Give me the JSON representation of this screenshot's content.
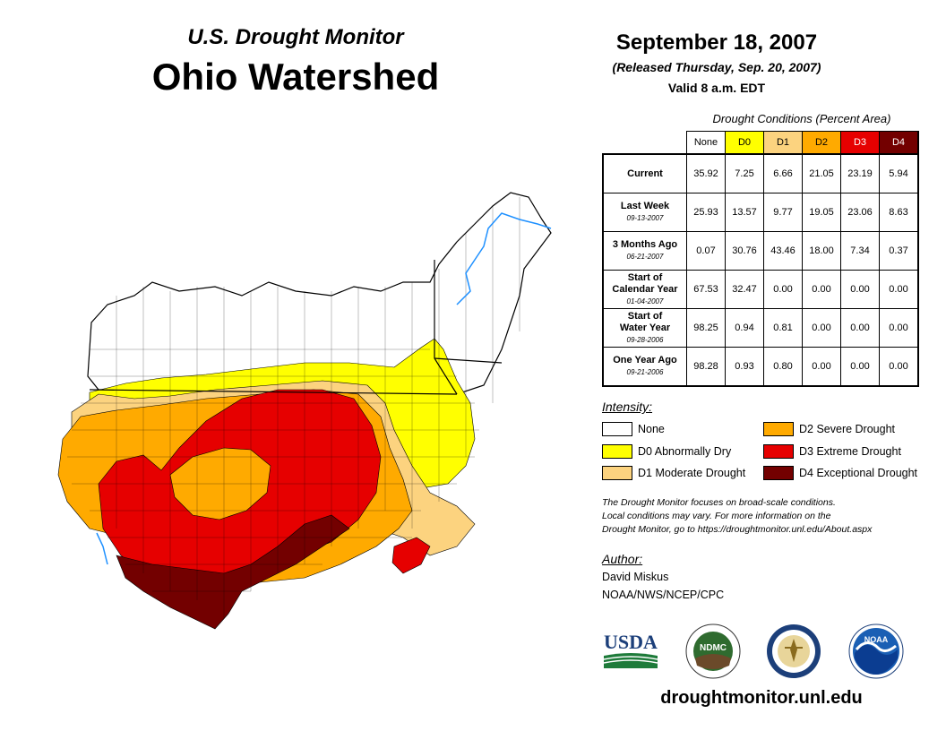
{
  "header": {
    "subtitle": "U.S. Drought Monitor",
    "region": "Ohio Watershed",
    "date": "September 18, 2007",
    "released": "(Released Thursday, Sep. 20, 2007)",
    "valid": "Valid 8 a.m. EDT"
  },
  "table": {
    "title": "Drought Conditions (Percent Area)",
    "columns": [
      {
        "label": "None",
        "color": "#ffffff"
      },
      {
        "label": "D0",
        "color": "#ffff00"
      },
      {
        "label": "D1",
        "color": "#fcd37f"
      },
      {
        "label": "D2",
        "color": "#ffaa00"
      },
      {
        "label": "D3",
        "color": "#e60000"
      },
      {
        "label": "D4",
        "color": "#730000"
      }
    ],
    "rows": [
      {
        "label": "Current",
        "label2": "",
        "date": "",
        "values": [
          "35.92",
          "7.25",
          "6.66",
          "21.05",
          "23.19",
          "5.94"
        ]
      },
      {
        "label": "Last Week",
        "label2": "",
        "date": "09-13-2007",
        "values": [
          "25.93",
          "13.57",
          "9.77",
          "19.05",
          "23.06",
          "8.63"
        ]
      },
      {
        "label": "3 Months Ago",
        "label2": "",
        "date": "06-21-2007",
        "values": [
          "0.07",
          "30.76",
          "43.46",
          "18.00",
          "7.34",
          "0.37"
        ]
      },
      {
        "label": "Start of",
        "label2": "Calendar Year",
        "date": "01-04-2007",
        "values": [
          "67.53",
          "32.47",
          "0.00",
          "0.00",
          "0.00",
          "0.00"
        ]
      },
      {
        "label": "Start of",
        "label2": "Water Year",
        "date": "09-28-2006",
        "values": [
          "98.25",
          "0.94",
          "0.81",
          "0.00",
          "0.00",
          "0.00"
        ]
      },
      {
        "label": "One Year Ago",
        "label2": "",
        "date": "09-21-2006",
        "values": [
          "98.28",
          "0.93",
          "0.80",
          "0.00",
          "0.00",
          "0.00"
        ]
      }
    ]
  },
  "legend": {
    "title": "Intensity:",
    "items": [
      {
        "label": "None",
        "color": "#ffffff"
      },
      {
        "label": "D0 Abnormally Dry",
        "color": "#ffff00"
      },
      {
        "label": "D1 Moderate Drought",
        "color": "#fcd37f"
      },
      {
        "label": "D2 Severe Drought",
        "color": "#ffaa00"
      },
      {
        "label": "D3 Extreme Drought",
        "color": "#e60000"
      },
      {
        "label": "D4 Exceptional Drought",
        "color": "#730000"
      }
    ]
  },
  "note": [
    "The Drought Monitor focuses on broad-scale conditions.",
    "Local conditions may vary. For more information on the",
    "Drought Monitor, go to https://droughtmonitor.unl.edu/About.aspx"
  ],
  "author": {
    "title": "Author:",
    "name": "David Miskus",
    "org": "NOAA/NWS/NCEP/CPC"
  },
  "logos": {
    "usda": "USDA",
    "ndmc": "NDMC",
    "noaa": "NOAA"
  },
  "footer": {
    "website": "droughtmonitor.unl.edu"
  },
  "colors": {
    "none": "#ffffff",
    "d0": "#ffff00",
    "d1": "#fcd37f",
    "d2": "#ffaa00",
    "d3": "#e60000",
    "d4": "#730000",
    "river": "#1e90ff"
  }
}
